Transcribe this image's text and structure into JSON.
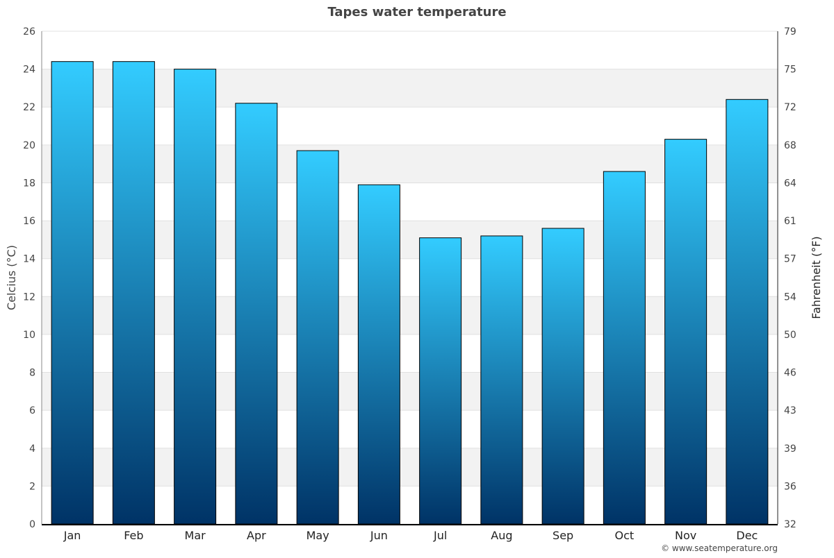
{
  "chart_data": {
    "type": "bar",
    "title": "Tapes water temperature",
    "categories": [
      "Jan",
      "Feb",
      "Mar",
      "Apr",
      "May",
      "Jun",
      "Jul",
      "Aug",
      "Sep",
      "Oct",
      "Nov",
      "Dec"
    ],
    "values": [
      24.4,
      24.4,
      24.0,
      22.2,
      19.7,
      17.9,
      15.1,
      15.2,
      15.6,
      18.6,
      20.3,
      22.4
    ],
    "ylabel": "Celcius (°C)",
    "y2label": "Fahrenheit (°F)",
    "ylim": [
      0,
      26
    ],
    "yticks": [
      0,
      2,
      4,
      6,
      8,
      10,
      12,
      14,
      16,
      18,
      20,
      22,
      24,
      26
    ],
    "y2ticks": [
      "32",
      "36",
      "39",
      "43",
      "46",
      "50",
      "54",
      "57",
      "61",
      "64",
      "68",
      "72",
      "75",
      "79"
    ],
    "grid": true,
    "bar_gradient": [
      "#33ccff",
      "#003366"
    ]
  },
  "credit": "© www.seatemperature.org"
}
